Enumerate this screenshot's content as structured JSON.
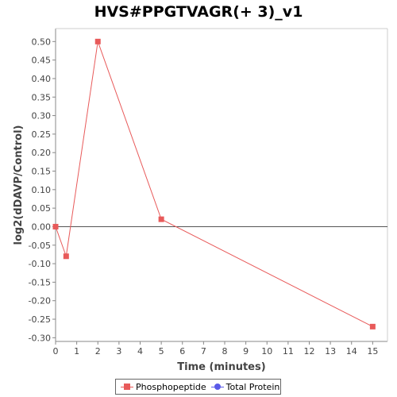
{
  "chart_data": {
    "type": "line",
    "title": "HVS#PPGTVAGR(+ 3)_v1",
    "xlabel": "Time (minutes)",
    "ylabel": "log2(dDAVP/Control)",
    "xlim": [
      0,
      15.7
    ],
    "ylim": [
      -0.31,
      0.535
    ],
    "x_ticks": [
      0,
      1,
      2,
      3,
      4,
      5,
      6,
      7,
      8,
      9,
      10,
      11,
      12,
      13,
      14,
      15
    ],
    "y_ticks": [
      -0.3,
      -0.25,
      -0.2,
      -0.15,
      -0.1,
      -0.05,
      0.0,
      0.05,
      0.1,
      0.15,
      0.2,
      0.25,
      0.3,
      0.35,
      0.4,
      0.45,
      0.5
    ],
    "zero_line": true,
    "grid": false,
    "legend_position": "bottom-center",
    "series": [
      {
        "name": "Phosphopeptide",
        "color": "#e85a5a",
        "marker": "square",
        "x": [
          0,
          0.5,
          2,
          5,
          15
        ],
        "y": [
          0.0,
          -0.08,
          0.5,
          0.02,
          -0.27
        ]
      },
      {
        "name": "Total Protein",
        "color": "#5a5ae8",
        "marker": "circle",
        "x": [],
        "y": []
      }
    ]
  }
}
